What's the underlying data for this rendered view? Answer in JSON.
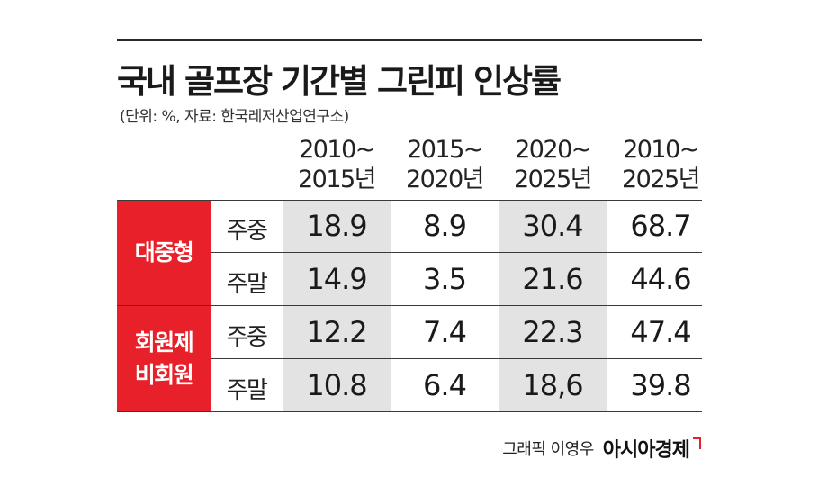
{
  "title": "국내 골프장 기간별 그린피 인상률",
  "subtitle": "(단위: %, 자료: 한국레저산업연구소)",
  "columns": [
    {
      "line1": "2010~",
      "line2": "2015년"
    },
    {
      "line1": "2015~",
      "line2": "2020년"
    },
    {
      "line1": "2020~",
      "line2": "2025년"
    },
    {
      "line1": "2010~",
      "line2": "2025년"
    }
  ],
  "groups": [
    {
      "label_lines": [
        "대중형"
      ],
      "accent": "#e8202a"
    },
    {
      "label_lines": [
        "회원제",
        "비회원"
      ],
      "accent": "#e8202a"
    }
  ],
  "rows": [
    {
      "label": "주중",
      "values": [
        "18.9",
        "8.9",
        "30.4",
        "68.7"
      ]
    },
    {
      "label": "주말",
      "values": [
        "14.9",
        "3.5",
        "21.6",
        "44.6"
      ]
    },
    {
      "label": "주중",
      "values": [
        "12.2",
        "7.4",
        "22.3",
        "47.4"
      ]
    },
    {
      "label": "주말",
      "values": [
        "10.8",
        "6.4",
        "18,6",
        "39.8"
      ]
    }
  ],
  "credit": "그래픽 이영우",
  "logo": "아시아경제",
  "chart_data": {
    "type": "table",
    "title": "국내 골프장 기간별 그린피 인상률",
    "unit": "%",
    "source": "한국레저산업연구소",
    "categories": [
      "2010~2015년",
      "2015~2020년",
      "2020~2025년",
      "2010~2025년"
    ],
    "series": [
      {
        "name": "대중형 주중",
        "values": [
          18.9,
          8.9,
          30.4,
          68.7
        ]
      },
      {
        "name": "대중형 주말",
        "values": [
          14.9,
          3.5,
          21.6,
          44.6
        ]
      },
      {
        "name": "회원제 비회원 주중",
        "values": [
          12.2,
          7.4,
          22.3,
          47.4
        ]
      },
      {
        "name": "회원제 비회원 주말",
        "values": [
          10.8,
          6.4,
          18.6,
          39.8
        ]
      }
    ]
  }
}
